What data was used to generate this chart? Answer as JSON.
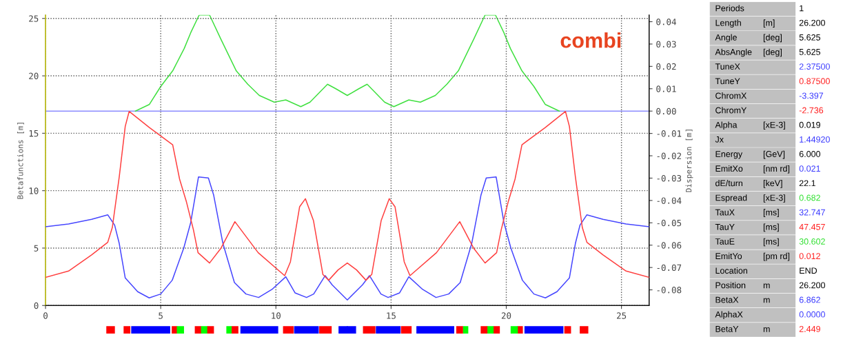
{
  "chart_data": [
    {
      "type": "line",
      "xlabel": null,
      "ylabel": "Betafunctions [m]",
      "y2label": "Dispersion [m]",
      "annotations": [
        "combi"
      ],
      "xlim": [
        0,
        26.2
      ],
      "xticks": [
        0,
        5,
        10,
        15,
        20,
        25
      ],
      "ylim": [
        0,
        25.3
      ],
      "yticks": [
        0,
        5,
        10,
        15,
        20,
        25
      ],
      "y2lim": [
        -0.087,
        0.043
      ],
      "y2ticks": [
        {
          "value": -0.08,
          "label": "-0.08"
        },
        {
          "value": -0.07,
          "label": "-0.07"
        },
        {
          "value": -0.06,
          "label": "-0.06"
        },
        {
          "value": -0.05,
          "label": "-0.05"
        },
        {
          "value": -0.04,
          "label": "-0.04"
        },
        {
          "value": -0.03,
          "label": "-0.03"
        },
        {
          "value": -0.02,
          "label": "-0.02"
        },
        {
          "value": -0.01,
          "label": "-0.01"
        },
        {
          "value": 0,
          "label": "0.00"
        },
        {
          "value": 0.01,
          "label": "0.01"
        },
        {
          "value": 0.02,
          "label": "0.02"
        },
        {
          "value": 0.03,
          "label": "0.03"
        },
        {
          "value": 0.04,
          "label": "0.04"
        }
      ],
      "grid": true,
      "legend": false,
      "marker": "none",
      "line_style": "solid",
      "ref_lines": [
        {
          "axis": "y2",
          "value": 0,
          "label": null,
          "color": "#8c8cff",
          "line_style": "solid"
        }
      ],
      "series": [
        {
          "color": "#4646ff",
          "x": [
            0,
            1,
            2,
            2.7,
            3.0,
            3.2,
            3.46,
            4.0,
            4.5,
            5.0,
            5.5,
            6.0,
            6.3,
            6.64,
            7.07,
            7.3,
            7.7,
            8.2,
            8.7,
            9.25,
            9.83,
            10.43,
            10.83,
            11.33,
            11.64,
            12.14,
            12.44,
            13.1,
            13.76,
            14.06,
            14.56,
            14.87,
            15.37,
            15.77,
            16.37,
            16.95,
            17.5,
            18.0,
            18.5,
            18.9,
            19.13,
            19.56,
            19.9,
            20.2,
            20.7,
            21.2,
            21.7,
            22.2,
            22.74,
            23.0,
            23.2,
            23.5,
            24.2,
            25.2,
            26.2
          ],
          "values": [
            6.86,
            7.1,
            7.5,
            7.9,
            7.0,
            5.4,
            2.4,
            1.2,
            0.66,
            1.0,
            2.2,
            5.0,
            7.2,
            11.2,
            11.1,
            9.6,
            5.4,
            2.0,
            1.0,
            0.7,
            1.4,
            2.5,
            1.1,
            0.7,
            1.0,
            2.6,
            1.8,
            0.48,
            1.8,
            2.6,
            1.0,
            0.7,
            1.1,
            2.5,
            1.4,
            0.7,
            1.0,
            2.0,
            5.4,
            9.6,
            11.1,
            11.2,
            7.2,
            5.0,
            2.2,
            1.0,
            0.66,
            1.2,
            2.4,
            5.4,
            7.0,
            7.9,
            7.5,
            7.1,
            6.86
          ]
        },
        {
          "color": "#ff4040",
          "x": [
            0,
            1,
            2,
            2.7,
            2.9,
            3.2,
            3.46,
            3.63,
            4.51,
            5.52,
            5.82,
            6.12,
            6.42,
            6.62,
            7.12,
            7.62,
            8.22,
            9.23,
            10.38,
            10.63,
            11.03,
            11.28,
            11.63,
            12.04,
            12.29,
            12.7,
            13.1,
            13.5,
            13.91,
            14.16,
            14.57,
            14.92,
            15.17,
            15.57,
            15.82,
            16.97,
            17.98,
            18.58,
            19.08,
            19.58,
            19.78,
            20.08,
            20.38,
            20.68,
            21.69,
            22.57,
            22.74,
            23.0,
            23.3,
            23.5,
            24.2,
            25.2,
            26.2
          ],
          "values": [
            2.45,
            3.0,
            4.4,
            5.5,
            6.8,
            11.2,
            15.6,
            16.9,
            15.5,
            14.0,
            11.0,
            9.0,
            6.6,
            4.6,
            3.7,
            5.0,
            7.3,
            4.6,
            2.6,
            3.8,
            8.6,
            9.3,
            7.4,
            2.7,
            2.2,
            3.1,
            3.7,
            3.1,
            2.2,
            2.7,
            7.4,
            9.3,
            8.6,
            3.8,
            2.6,
            4.6,
            7.3,
            5.0,
            3.7,
            4.6,
            6.6,
            9.0,
            11.0,
            14.0,
            15.5,
            16.9,
            15.6,
            11.2,
            6.8,
            5.5,
            4.4,
            3.0,
            2.45
          ]
        },
        {
          "color": "#40e040",
          "axis": "y2",
          "x": [
            3.9,
            4.51,
            5.0,
            5.52,
            6.02,
            6.3,
            6.67,
            7.12,
            7.62,
            8.28,
            8.78,
            9.28,
            9.93,
            10.43,
            11.08,
            11.48,
            12.24,
            12.6,
            13.1,
            13.6,
            13.96,
            14.72,
            15.12,
            15.77,
            16.27,
            16.92,
            17.42,
            17.92,
            18.58,
            19.08,
            19.53,
            19.9,
            20.18,
            20.68,
            21.2,
            21.69,
            22.3
          ],
          "values": [
            0,
            0.003,
            0.011,
            0.018,
            0.028,
            0.035,
            0.043,
            0.043,
            0.032,
            0.018,
            0.012,
            0.007,
            0.004,
            0.005,
            0.002,
            0.004,
            0.012,
            0.01,
            0.007,
            0.01,
            0.012,
            0.004,
            0.002,
            0.005,
            0.004,
            0.007,
            0.012,
            0.018,
            0.032,
            0.043,
            0.043,
            0.035,
            0.028,
            0.018,
            0.011,
            0.003,
            0
          ]
        }
      ]
    },
    {
      "type": "other",
      "cell_labels": [
        [
          "Periods",
          null,
          "1"
        ],
        [
          "Length",
          "[m]",
          "26.200"
        ],
        [
          "Angle",
          "[deg]",
          "5.625"
        ],
        [
          "AbsAngle",
          "[deg]",
          "5.625"
        ],
        [
          "TuneX",
          null,
          "2.37500"
        ],
        [
          "TuneY",
          null,
          "0.87500"
        ],
        [
          "ChromX",
          null,
          "-3.397"
        ],
        [
          "ChromY",
          null,
          "-2.736"
        ],
        [
          "Alpha",
          "[xE-3]",
          "0.019"
        ],
        [
          "Jx",
          null,
          "1.44920"
        ],
        [
          "Energy",
          "[GeV]",
          "6.000"
        ],
        [
          "EmitXo",
          "[nm rd]",
          "0.021"
        ],
        [
          "dE/turn",
          "[keV]",
          "22.1"
        ],
        [
          "Espread",
          "[xE-3]",
          "0.682"
        ],
        [
          "TauX",
          "[ms]",
          "32.747"
        ],
        [
          "TauY",
          "[ms]",
          "47.457"
        ],
        [
          "TauE",
          "[ms]",
          "30.602"
        ],
        [
          "EmitYo",
          "[pm rd]",
          "0.012"
        ],
        [
          "Location",
          null,
          "END"
        ],
        [
          "Position",
          "m",
          "26.200"
        ],
        [
          "BetaX",
          "m",
          "6.862"
        ],
        [
          "AlphaX",
          null,
          "0.0000"
        ],
        [
          "BetaY",
          "m",
          "2.449"
        ]
      ],
      "colors": [
        "#000000",
        "#000000",
        "#000000",
        "#000000",
        "#3c3cff",
        "#ff2020",
        "#3c3cff",
        "#ff2020",
        "#000000",
        "#3c3cff",
        "#000000",
        "#3c3cff",
        "#000000",
        "#30e030",
        "#3c3cff",
        "#ff2020",
        "#30e030",
        "#ff2020",
        "#000000",
        "#000000",
        "#3c3cff",
        "#3c3cff",
        "#ff2020"
      ]
    }
  ]
}
